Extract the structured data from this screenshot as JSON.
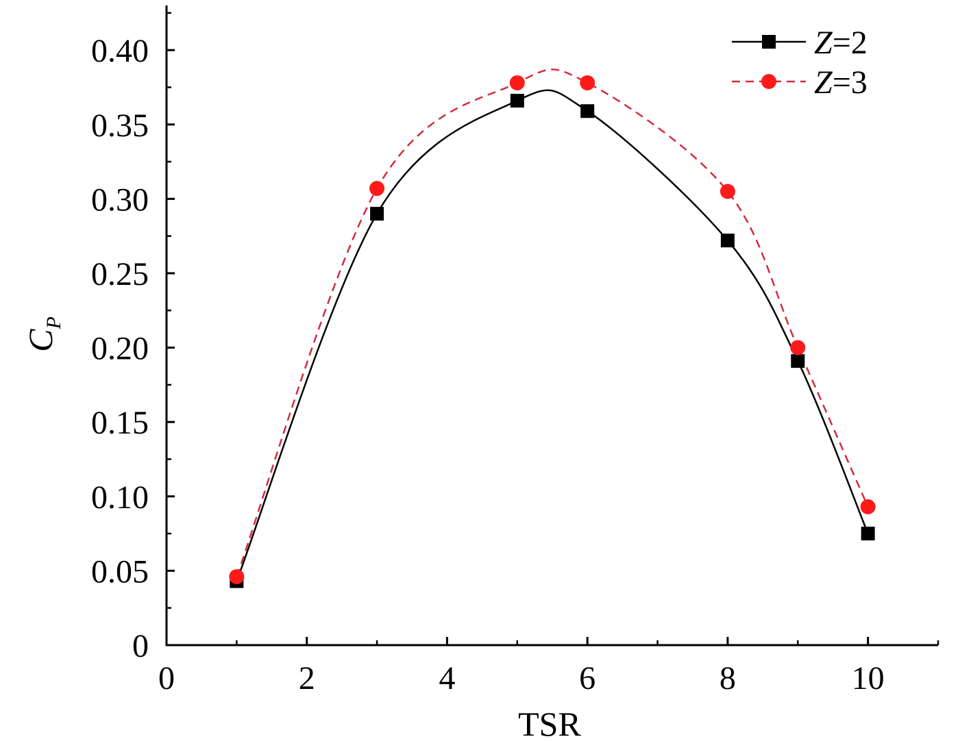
{
  "chart_data": {
    "type": "line",
    "title": "",
    "xlabel": "TSR",
    "ylabel": "C",
    "ylabel_subscript": "P",
    "xlim": [
      0,
      11
    ],
    "ylim": [
      0,
      0.43
    ],
    "x_ticks": [
      0,
      2,
      4,
      6,
      8,
      10
    ],
    "x_tick_labels": [
      "0",
      "2",
      "4",
      "6",
      "8",
      "10"
    ],
    "x_minor_ticks": [
      1,
      3,
      5,
      7,
      9,
      11
    ],
    "y_ticks": [
      0,
      0.05,
      0.1,
      0.15,
      0.2,
      0.25,
      0.3,
      0.35,
      0.4
    ],
    "y_tick_labels": [
      "0",
      "0.05",
      "0.10",
      "0.15",
      "0.20",
      "0.25",
      "0.30",
      "0.35",
      "0.40"
    ],
    "y_minor_ticks": [
      0.025,
      0.075,
      0.125,
      0.175,
      0.225,
      0.275,
      0.325,
      0.375,
      0.425
    ],
    "grid": false,
    "legend_position": "top-right",
    "series": [
      {
        "name": "Z=2",
        "legend_italic": "Z",
        "legend_rest": "=2",
        "x": [
          1,
          3,
          5,
          6,
          8,
          9,
          10
        ],
        "values": [
          0.043,
          0.29,
          0.366,
          0.359,
          0.272,
          0.191,
          0.075
        ],
        "color": "#000000",
        "marker": "square",
        "line_style": "solid"
      },
      {
        "name": "Z=3",
        "legend_italic": "Z",
        "legend_rest": "=3",
        "x": [
          1,
          3,
          5,
          6,
          8,
          9,
          10
        ],
        "values": [
          0.046,
          0.307,
          0.378,
          0.378,
          0.305,
          0.2,
          0.093
        ],
        "color": "#ff1a1a",
        "line_color": "#d42a3c",
        "marker": "circle",
        "line_style": "dashed"
      }
    ]
  }
}
